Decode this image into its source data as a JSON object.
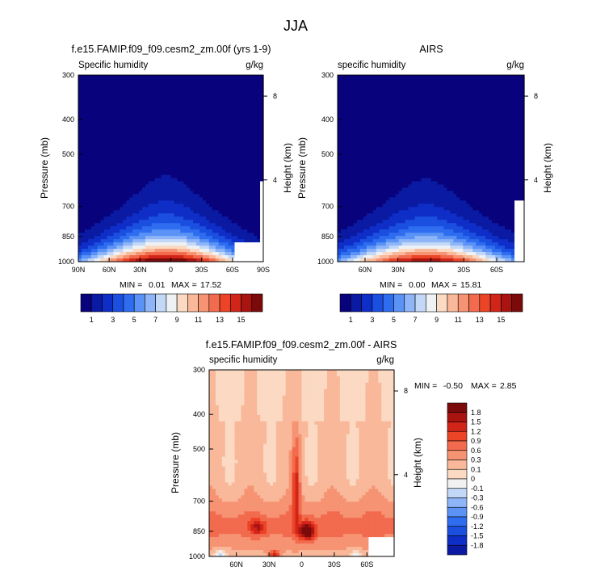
{
  "figure": {
    "title": "JJA"
  },
  "chart_data": [
    {
      "type": "heatmap",
      "title": "f.e15.FAMIP.f09_f09.cesm2_zm.00f (yrs 1-9)",
      "subtitle_left": "Specific humidity",
      "units": "g/kg",
      "ylabel": "Pressure (mb)",
      "ylabel_right": "Height (km)",
      "x_ticks": [
        "90N",
        "60N",
        "30N",
        "0",
        "30S",
        "60S",
        "90S"
      ],
      "x_tick_lat": [
        90,
        60,
        30,
        0,
        -30,
        -60,
        -90
      ],
      "xlim": [
        90,
        -90
      ],
      "y_ticks": [
        "300",
        "400",
        "500",
        "700",
        "850",
        "1000"
      ],
      "y_tick_p": [
        300,
        400,
        500,
        700,
        850,
        1000
      ],
      "ylim": [
        300,
        1000
      ],
      "y_right_ticks": [
        "8",
        "4"
      ],
      "y_right_km": [
        8,
        4
      ],
      "stats": {
        "min_label": "MIN =",
        "min": "0.01",
        "max_label": "MAX =",
        "max": "17.52"
      },
      "field": {
        "peak": 17.52,
        "peak_lat": 5,
        "peak_p": 990
      }
    },
    {
      "type": "heatmap",
      "title": "AIRS",
      "subtitle_left": "specific humidity",
      "units": "g/kg",
      "ylabel": "Pressure (mb)",
      "ylabel_right": "Height (km)",
      "x_ticks": [
        "60N",
        "30N",
        "0",
        "30S",
        "60S"
      ],
      "x_tick_lat": [
        60,
        30,
        0,
        -30,
        -60
      ],
      "xlim": [
        85,
        -85
      ],
      "y_ticks": [
        "300",
        "400",
        "500",
        "700",
        "850",
        "1000"
      ],
      "y_tick_p": [
        300,
        400,
        500,
        700,
        850,
        1000
      ],
      "ylim": [
        300,
        1000
      ],
      "y_right_ticks": [
        "8",
        "4"
      ],
      "y_right_km": [
        8,
        4
      ],
      "stats": {
        "min_label": "MIN =",
        "min": "0.00",
        "max_label": "MAX =",
        "max": "15.81"
      },
      "field": {
        "peak": 15.81,
        "peak_lat": 5,
        "peak_p": 990
      }
    },
    {
      "type": "heatmap",
      "title": "f.e15.FAMIP.f09_f09.cesm2_zm.00f - AIRS",
      "subtitle_left": "specific humidity",
      "units": "g/kg",
      "ylabel": "Pressure (mb)",
      "ylabel_right": "Height (km)",
      "x_ticks": [
        "60N",
        "30N",
        "0",
        "30S",
        "60S"
      ],
      "x_tick_lat": [
        60,
        30,
        0,
        -30,
        -60
      ],
      "xlim": [
        85,
        -85
      ],
      "y_ticks": [
        "300",
        "400",
        "500",
        "700",
        "850",
        "1000"
      ],
      "y_tick_p": [
        300,
        400,
        500,
        700,
        850,
        1000
      ],
      "ylim": [
        300,
        1000
      ],
      "y_right_ticks": [
        "8",
        "4"
      ],
      "y_right_km": [
        8,
        4
      ],
      "stats": {
        "min_label": "MIN =",
        "min": "-0.50",
        "max_label": "MAX =",
        "max": "2.85"
      }
    }
  ],
  "colorbar_abs": {
    "orientation": "horizontal",
    "levels": [
      "1",
      "3",
      "5",
      "7",
      "9",
      "11",
      "13",
      "15"
    ],
    "colors": [
      "#08037c",
      "#0a1aa3",
      "#0f2ec7",
      "#1a4fe0",
      "#2f6df0",
      "#5a92f5",
      "#8db5f7",
      "#c3d7f7",
      "#eef2f5",
      "#fbd9c2",
      "#f8b899",
      "#f69373",
      "#f26b4e",
      "#eb4426",
      "#d2251a",
      "#a91411",
      "#7b0a0a"
    ]
  },
  "colorbar_diff": {
    "orientation": "vertical",
    "levels": [
      "1.8",
      "1.5",
      "1.2",
      "0.9",
      "0.6",
      "0.3",
      "0.1",
      "0",
      "-0.1",
      "-0.3",
      "-0.6",
      "-0.9",
      "-1.2",
      "-1.5",
      "-1.8"
    ],
    "colors": [
      "#7b0a0a",
      "#a91411",
      "#d2251a",
      "#eb4426",
      "#f26b4e",
      "#f69373",
      "#f8b899",
      "#fbd9c2",
      "#f1f1f1",
      "#c3d7f7",
      "#8db5f7",
      "#5a92f5",
      "#2f6df0",
      "#1a4fe0",
      "#0f2ec7",
      "#0a1aa3"
    ]
  }
}
